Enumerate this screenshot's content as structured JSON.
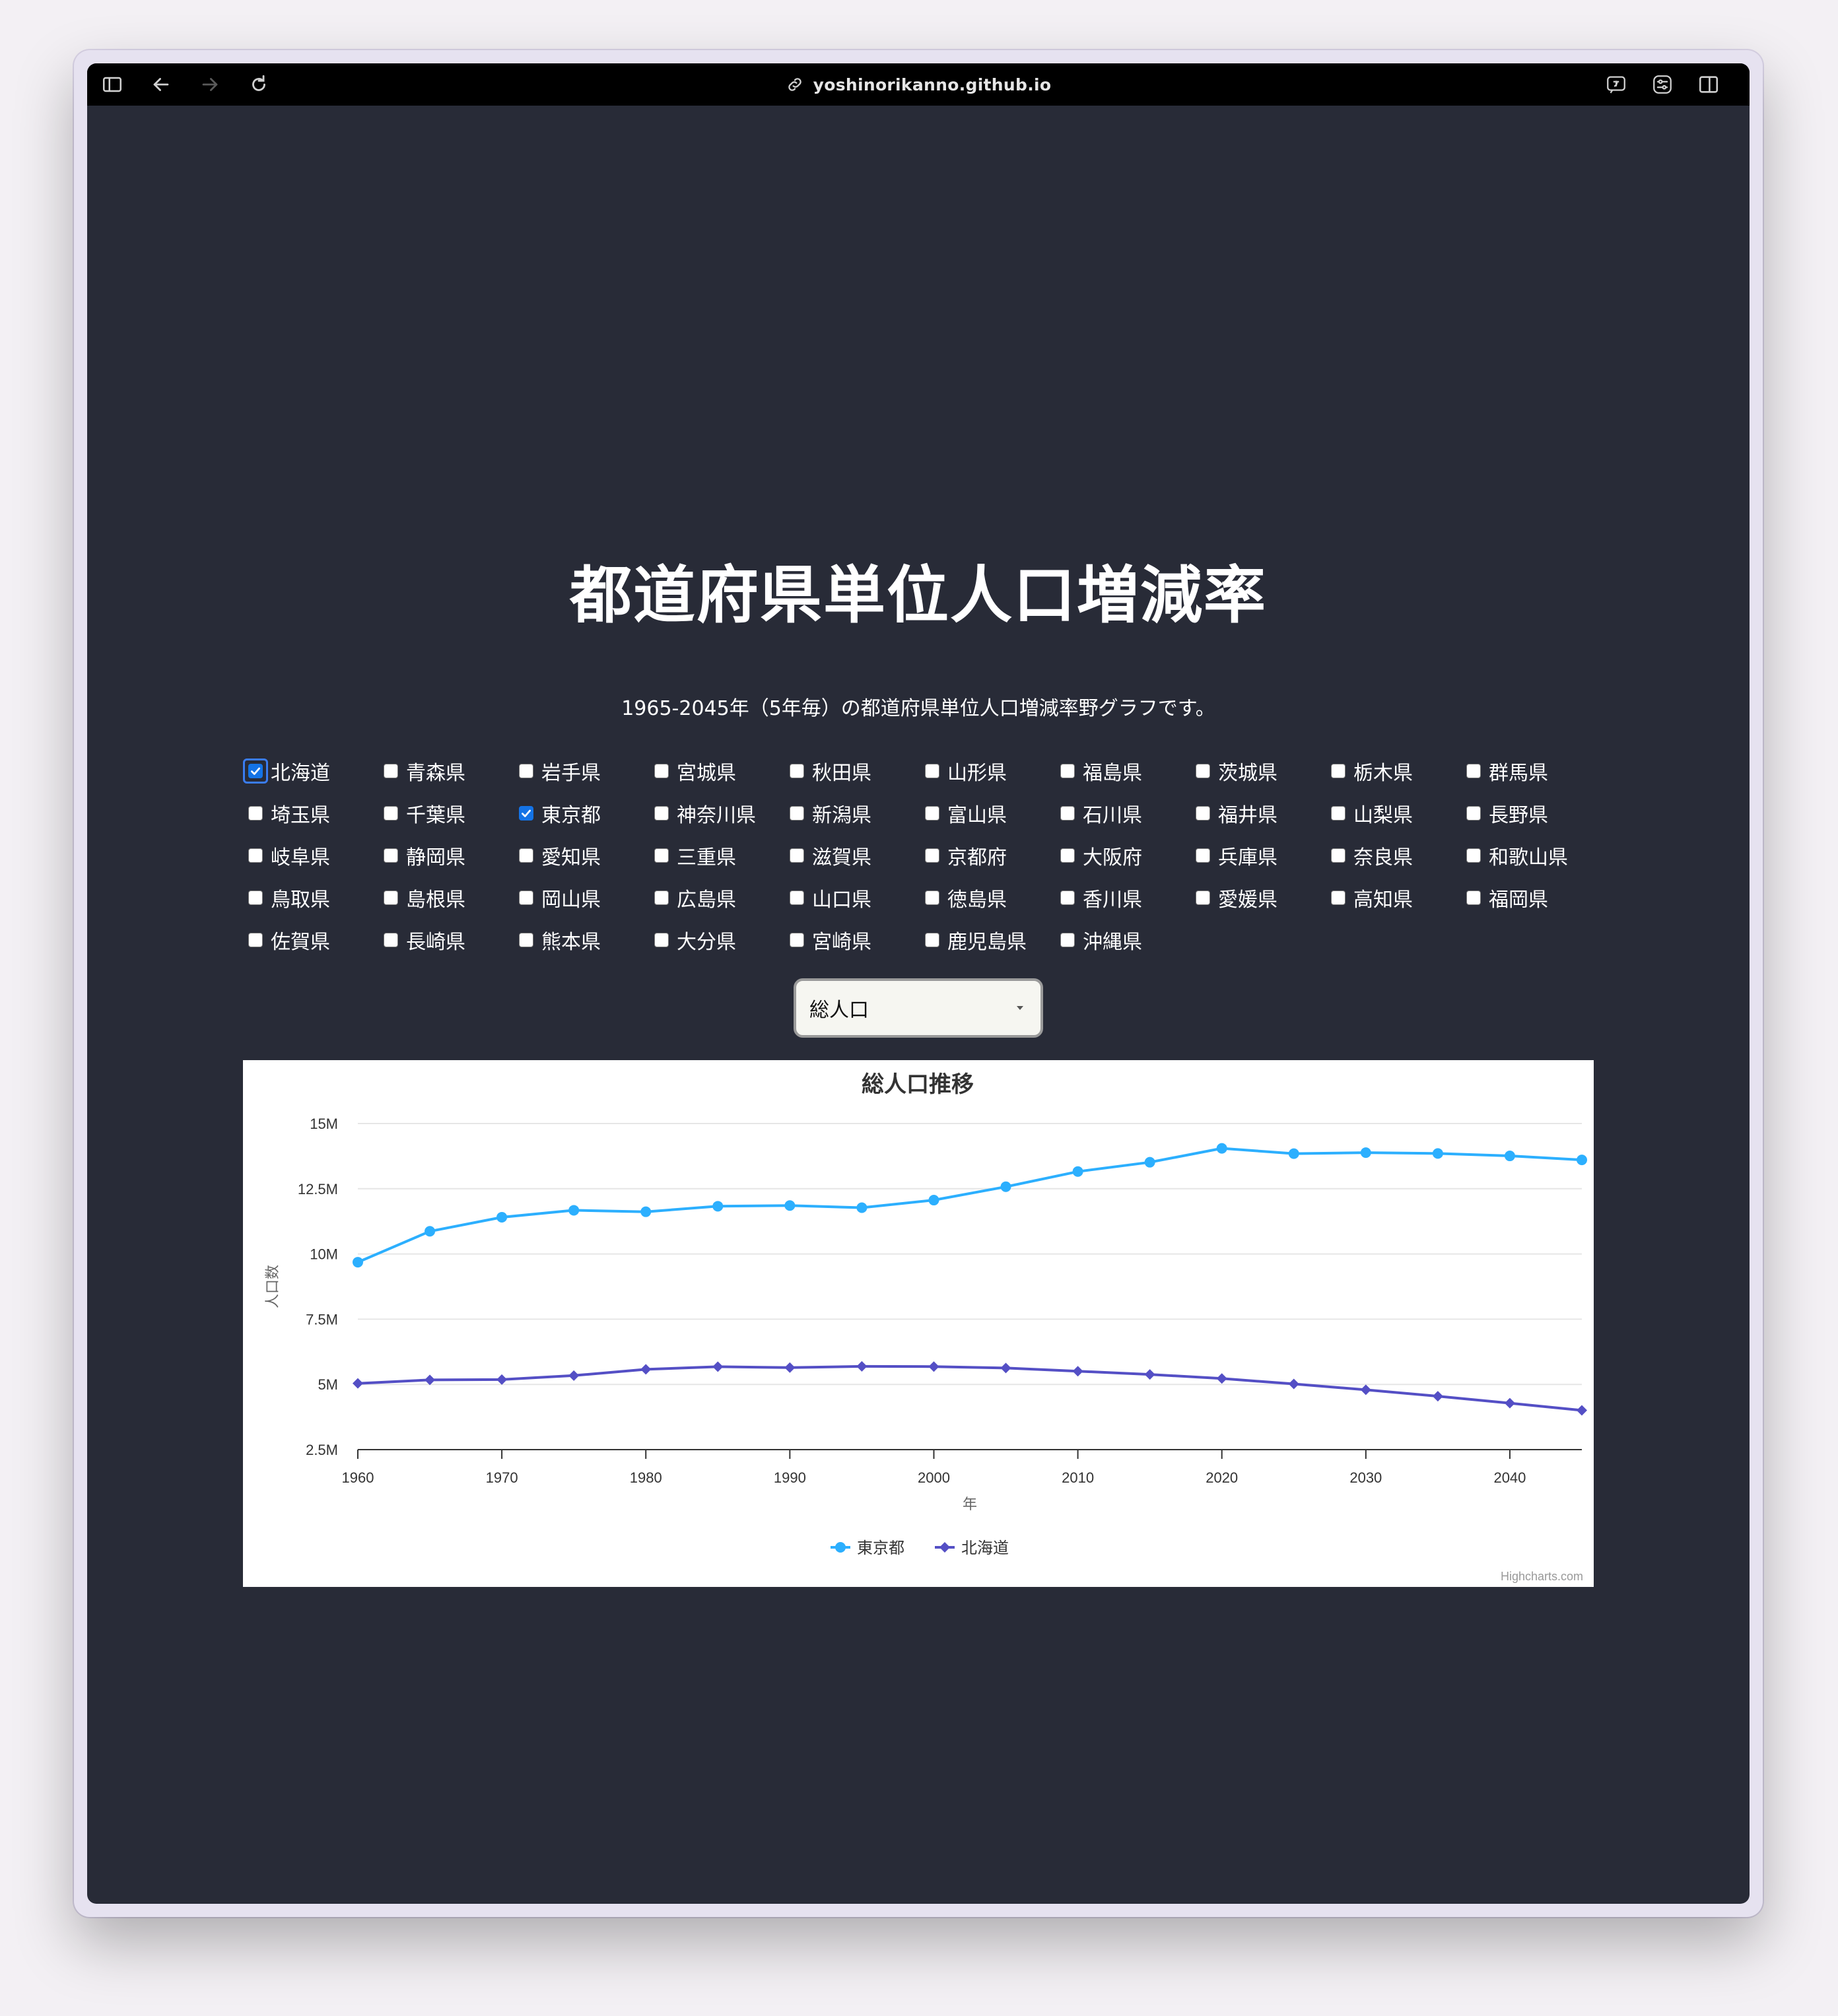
{
  "browser": {
    "url": "yoshinorikanno.github.io"
  },
  "page": {
    "title": "都道府県単位人口増減率",
    "subtitle": "1965-2045年（5年毎）の都道府県単位人口増減率野グラフです。"
  },
  "prefectures": [
    [
      {
        "name": "北海道",
        "checked": true,
        "focused": true
      },
      {
        "name": "青森県"
      },
      {
        "name": "岩手県"
      },
      {
        "name": "宮城県"
      },
      {
        "name": "秋田県"
      },
      {
        "name": "山形県"
      },
      {
        "name": "福島県"
      },
      {
        "name": "茨城県"
      },
      {
        "name": "栃木県"
      },
      {
        "name": "群馬県"
      }
    ],
    [
      {
        "name": "埼玉県"
      },
      {
        "name": "千葉県"
      },
      {
        "name": "東京都",
        "checked": true
      },
      {
        "name": "神奈川県"
      },
      {
        "name": "新潟県"
      },
      {
        "name": "富山県"
      },
      {
        "name": "石川県"
      },
      {
        "name": "福井県"
      },
      {
        "name": "山梨県"
      },
      {
        "name": "長野県"
      }
    ],
    [
      {
        "name": "岐阜県"
      },
      {
        "name": "静岡県"
      },
      {
        "name": "愛知県"
      },
      {
        "name": "三重県"
      },
      {
        "name": "滋賀県"
      },
      {
        "name": "京都府"
      },
      {
        "name": "大阪府"
      },
      {
        "name": "兵庫県"
      },
      {
        "name": "奈良県"
      },
      {
        "name": "和歌山県"
      }
    ],
    [
      {
        "name": "鳥取県"
      },
      {
        "name": "島根県"
      },
      {
        "name": "岡山県"
      },
      {
        "name": "広島県"
      },
      {
        "name": "山口県"
      },
      {
        "name": "徳島県"
      },
      {
        "name": "香川県"
      },
      {
        "name": "愛媛県"
      },
      {
        "name": "高知県"
      },
      {
        "name": "福岡県"
      }
    ],
    [
      {
        "name": "佐賀県"
      },
      {
        "name": "長崎県"
      },
      {
        "name": "熊本県"
      },
      {
        "name": "大分県"
      },
      {
        "name": "宮崎県"
      },
      {
        "name": "鹿児島県"
      },
      {
        "name": "沖縄県"
      }
    ]
  ],
  "select": {
    "value": "総人口"
  },
  "chart_data": {
    "type": "line",
    "title": "総人口推移",
    "xlabel": "年",
    "ylabel": "人口数",
    "xlim": [
      1960,
      2045
    ],
    "ylim": [
      2500000,
      15000000
    ],
    "x_ticks": [
      1960,
      1970,
      1980,
      1990,
      2000,
      2010,
      2020,
      2030,
      2040
    ],
    "y_ticks": [
      {
        "value": 2500000,
        "label": "2.5M"
      },
      {
        "value": 5000000,
        "label": "5M"
      },
      {
        "value": 7500000,
        "label": "7.5M"
      },
      {
        "value": 10000000,
        "label": "10M"
      },
      {
        "value": 12500000,
        "label": "12.5M"
      },
      {
        "value": 15000000,
        "label": "15M"
      }
    ],
    "grid": true,
    "legend": "bottom-center",
    "credits": "Highcharts.com",
    "x": [
      1960,
      1965,
      1970,
      1975,
      1980,
      1985,
      1990,
      1995,
      2000,
      2005,
      2010,
      2015,
      2020,
      2025,
      2030,
      2035,
      2040,
      2045
    ],
    "series": [
      {
        "name": "東京都",
        "color": "#2caffe",
        "marker": "circle",
        "values": [
          9684000,
          10869000,
          11408000,
          11674000,
          11618000,
          11829000,
          11856000,
          11774000,
          12064000,
          12577000,
          13159000,
          13515000,
          14048000,
          13846000,
          13883000,
          13852000,
          13759000,
          13605000
        ]
      },
      {
        "name": "北海道",
        "color": "#544fc5",
        "marker": "diamond",
        "values": [
          5039000,
          5172000,
          5184000,
          5338000,
          5576000,
          5679000,
          5644000,
          5692000,
          5683000,
          5628000,
          5506000,
          5382000,
          5225000,
          5017000,
          4792000,
          4546000,
          4281000,
          4005000
        ]
      }
    ]
  }
}
